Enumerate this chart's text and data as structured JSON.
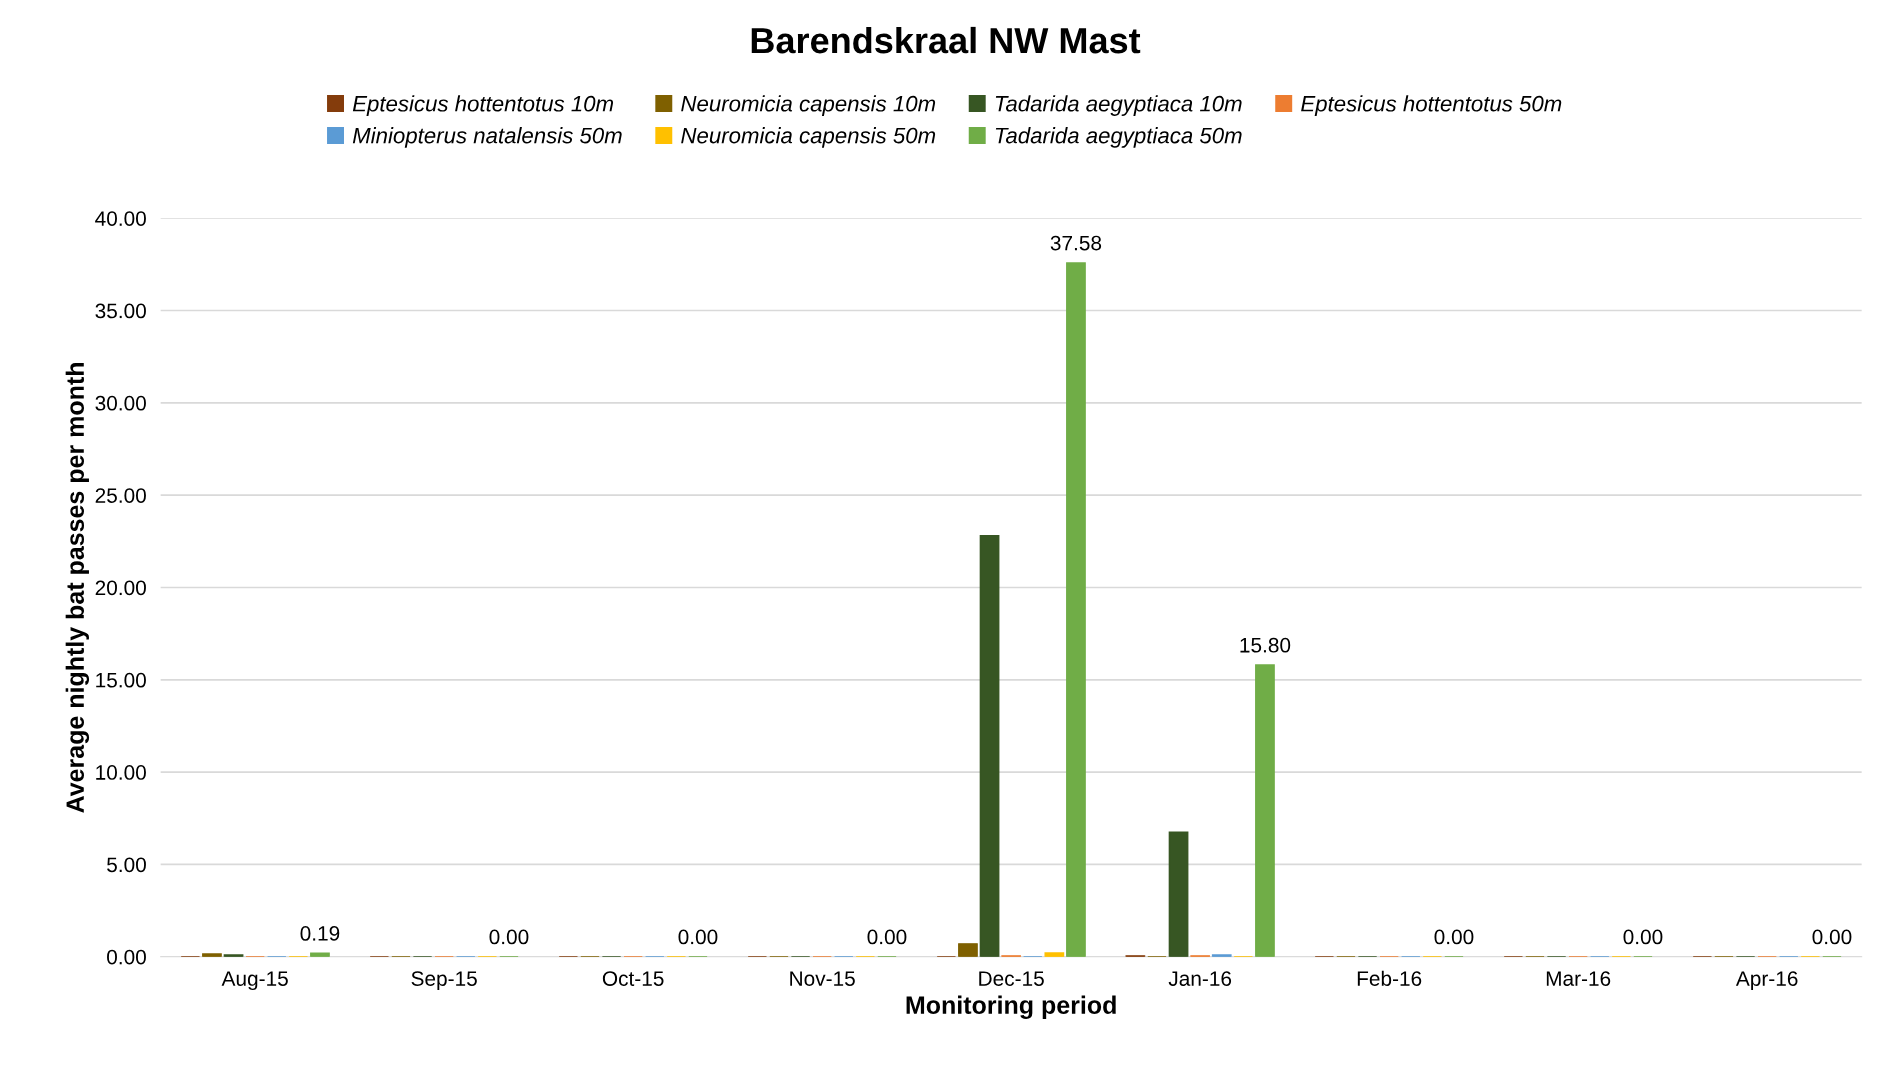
{
  "chart_data": {
    "type": "bar",
    "title": "Barendskraal NW Mast",
    "xlabel": "Monitoring period",
    "ylabel": "Average nightly bat passes per month",
    "categories": [
      "Aug-15",
      "Sep-15",
      "Oct-15",
      "Nov-15",
      "Dec-15",
      "Jan-16",
      "Feb-16",
      "Mar-16",
      "Apr-16"
    ],
    "series": [
      {
        "name": "Eptesicus hottentotus 10m",
        "color": "#843c0c",
        "values": [
          0,
          0,
          0,
          0,
          null,
          0.05,
          0,
          0,
          0
        ]
      },
      {
        "name": "Neuromicia capensis 10m",
        "color": "#7f6000",
        "values": [
          0.15,
          0,
          0,
          0,
          0.7,
          0,
          0,
          0,
          0
        ]
      },
      {
        "name": "Tadarida aegyptiaca 10m",
        "color": "#375623",
        "values": [
          0.1,
          0,
          0,
          0,
          22.8,
          6.75,
          0,
          0,
          0
        ]
      },
      {
        "name": "Eptesicus hottentotus 50m",
        "color": "#ed7d31",
        "values": [
          0,
          0,
          0,
          0,
          0.05,
          0.05,
          0,
          0,
          0
        ]
      },
      {
        "name": "Miniopterus natalensis 50m",
        "color": "#5b9bd5",
        "values": [
          0,
          0,
          0,
          0,
          0,
          0.1,
          0,
          0,
          0
        ]
      },
      {
        "name": "Neuromicia capensis 50m",
        "color": "#ffc000",
        "values": [
          0,
          0,
          0,
          0,
          0.2,
          0,
          0,
          0,
          0
        ]
      },
      {
        "name": "Tadarida aegyptiaca 50m",
        "color": "#70ad47",
        "values": [
          0.19,
          0,
          0,
          0,
          37.58,
          15.8,
          0,
          0,
          0
        ],
        "value_labels": [
          "0.19",
          "0.00",
          "0.00",
          "0.00",
          "37.58",
          "15.80",
          "0.00",
          "0.00",
          "0.00"
        ]
      }
    ],
    "ylim": [
      0,
      40
    ],
    "yticks": [
      {
        "value": 0,
        "label": "0.00"
      },
      {
        "value": 5,
        "label": "5.00"
      },
      {
        "value": 10,
        "label": "10.00"
      },
      {
        "value": 15,
        "label": "15.00"
      },
      {
        "value": 20,
        "label": "20.00"
      },
      {
        "value": 25,
        "label": "25.00"
      },
      {
        "value": 30,
        "label": "30.00"
      },
      {
        "value": 35,
        "label": "35.00"
      },
      {
        "value": 40,
        "label": "40.00"
      }
    ],
    "grid": "y",
    "legend": "top"
  }
}
